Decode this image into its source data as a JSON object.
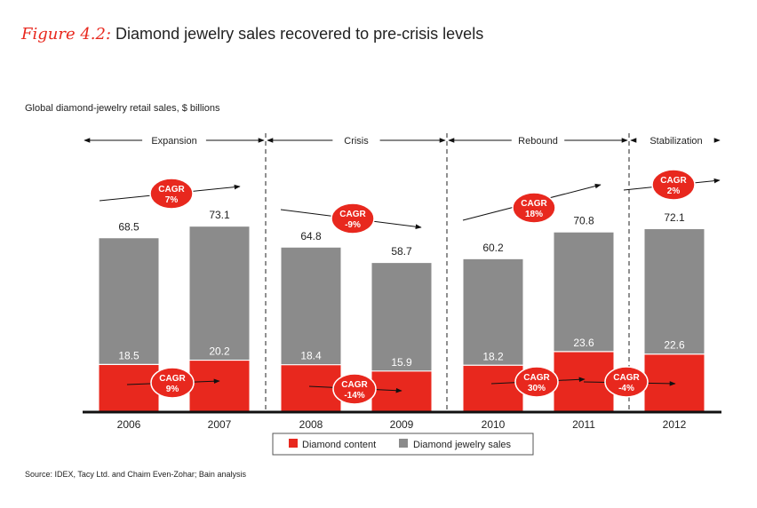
{
  "title_prefix": "Figure 4.2:",
  "title_text": "Diamond jewelry sales recovered to pre-crisis levels",
  "subtitle": "Global diamond-jewelry retail sales, $ billions",
  "source": "Source:  IDEX, Tacy Ltd. and Chaim Even-Zohar; Bain analysis",
  "colors": {
    "diamond_content": "#e8281e",
    "jewelry_sales": "#8b8b8b",
    "cagr_bubble": "#e8281e",
    "axis": "#111111"
  },
  "chart_data": {
    "type": "bar",
    "stacked": true,
    "categories": [
      "2006",
      "2007",
      "2008",
      "2009",
      "2010",
      "2011",
      "2012"
    ],
    "series": [
      {
        "name": "Diamond content",
        "values": [
          18.5,
          20.2,
          18.4,
          15.9,
          18.2,
          23.6,
          22.6
        ]
      },
      {
        "name": "Diamond jewelry sales",
        "values": [
          68.5,
          73.1,
          64.8,
          58.7,
          60.2,
          70.8,
          72.1
        ]
      }
    ],
    "ylim": [
      0,
      100
    ],
    "legend": [
      "Diamond content",
      "Diamond jewelry sales"
    ],
    "legend_position": "bottom",
    "phases": [
      {
        "label": "Expansion",
        "start": 0,
        "end": 1
      },
      {
        "label": "Crisis",
        "start": 2,
        "end": 3
      },
      {
        "label": "Rebound",
        "start": 4,
        "end": 5
      },
      {
        "label": "Stabilization",
        "start": 6,
        "end": 6
      }
    ],
    "cagr_upper": [
      {
        "line1": "CAGR",
        "line2": "7%",
        "from": 0,
        "to": 1
      },
      {
        "line1": "CAGR",
        "line2": "-9%",
        "from": 2,
        "to": 3
      },
      {
        "line1": "CAGR",
        "line2": "18%",
        "from": 4,
        "to": 5
      },
      {
        "line1": "CAGR",
        "line2": "2%",
        "from": 6,
        "to": 6
      }
    ],
    "cagr_lower": [
      {
        "line1": "CAGR",
        "line2": "9%",
        "from": 0,
        "to": 1
      },
      {
        "line1": "CAGR",
        "line2": "-14%",
        "from": 2,
        "to": 3
      },
      {
        "line1": "CAGR",
        "line2": "30%",
        "from": 4,
        "to": 5
      },
      {
        "line1": "CAGR",
        "line2": "-4%",
        "from": 5,
        "to": 6
      }
    ]
  }
}
